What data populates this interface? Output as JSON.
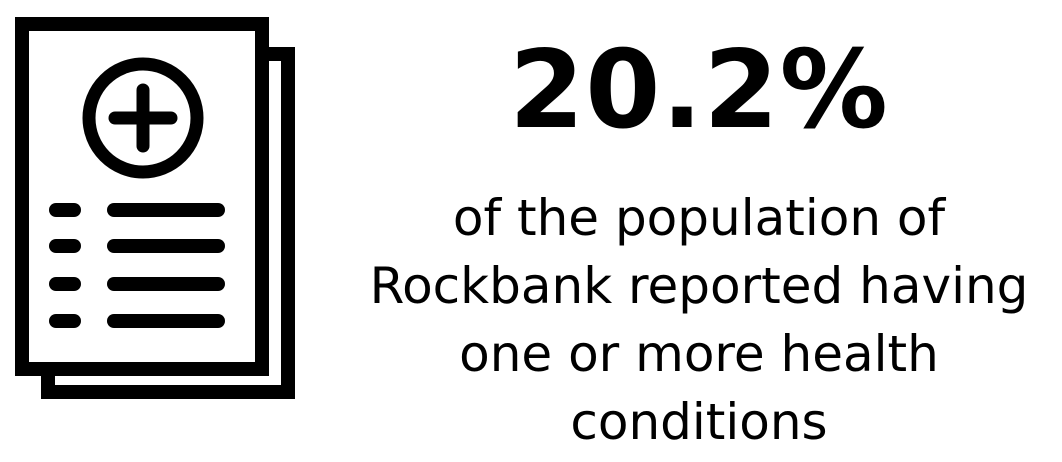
{
  "icon": {
    "name": "medical-report-icon",
    "color": "#000000"
  },
  "stat": {
    "value": "20.2%",
    "caption_lines": [
      "of the population of",
      "Rockbank reported having",
      "one or more health",
      "conditions"
    ]
  }
}
